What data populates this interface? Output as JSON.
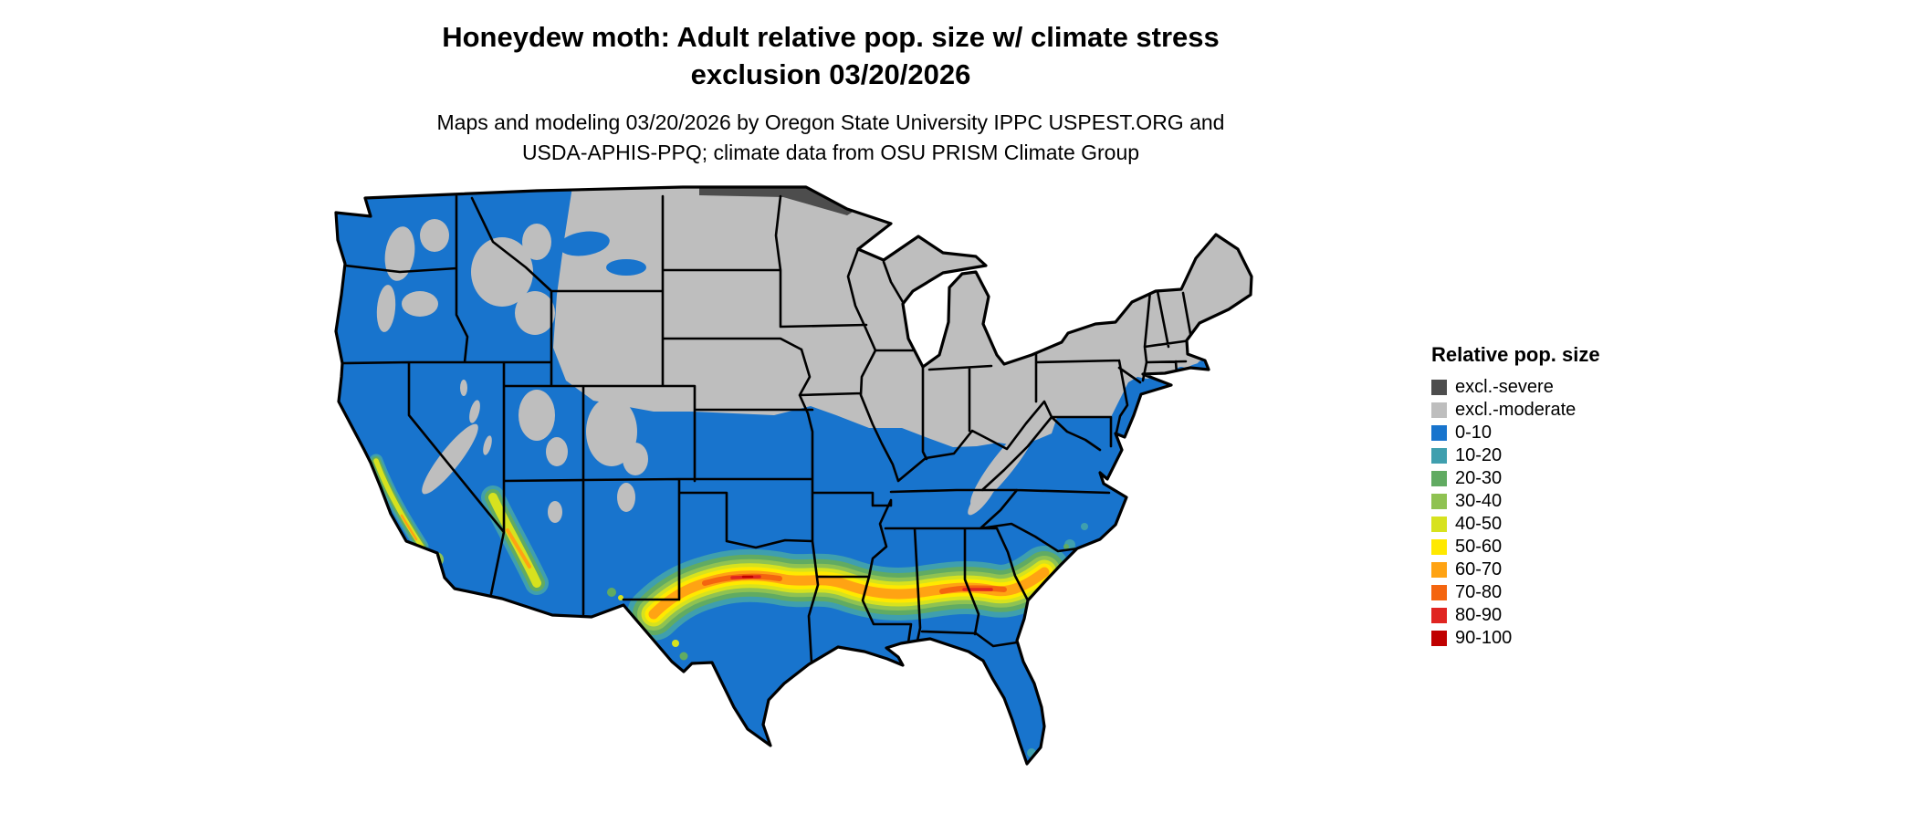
{
  "title": {
    "line1": "Honeydew moth: Adult relative pop. size w/ climate stress",
    "line2": "exclusion 03/20/2026"
  },
  "subtitle": {
    "line1": "Maps and modeling 03/20/2026 by Oregon State University IPPC USPEST.ORG and",
    "line2": "USDA-APHIS-PPQ; climate data from OSU PRISM Climate Group"
  },
  "legend": {
    "title": "Relative pop. size",
    "items": [
      {
        "label": "excl.-severe",
        "color": "#4d4d4d"
      },
      {
        "label": "excl.-moderate",
        "color": "#bebebe"
      },
      {
        "label": "0-10",
        "color": "#1874cd"
      },
      {
        "label": "10-20",
        "color": "#3f9fae"
      },
      {
        "label": "20-30",
        "color": "#61ab62"
      },
      {
        "label": "30-40",
        "color": "#8fc252"
      },
      {
        "label": "40-50",
        "color": "#d7e21e"
      },
      {
        "label": "50-60",
        "color": "#ffe900"
      },
      {
        "label": "60-70",
        "color": "#ffa313"
      },
      {
        "label": "70-80",
        "color": "#f4650f"
      },
      {
        "label": "80-90",
        "color": "#e02521"
      },
      {
        "label": "90-100",
        "color": "#c00000"
      }
    ]
  },
  "map": {
    "region": "Contiguous United States",
    "border_color": "#000000",
    "background": "#ffffff"
  }
}
